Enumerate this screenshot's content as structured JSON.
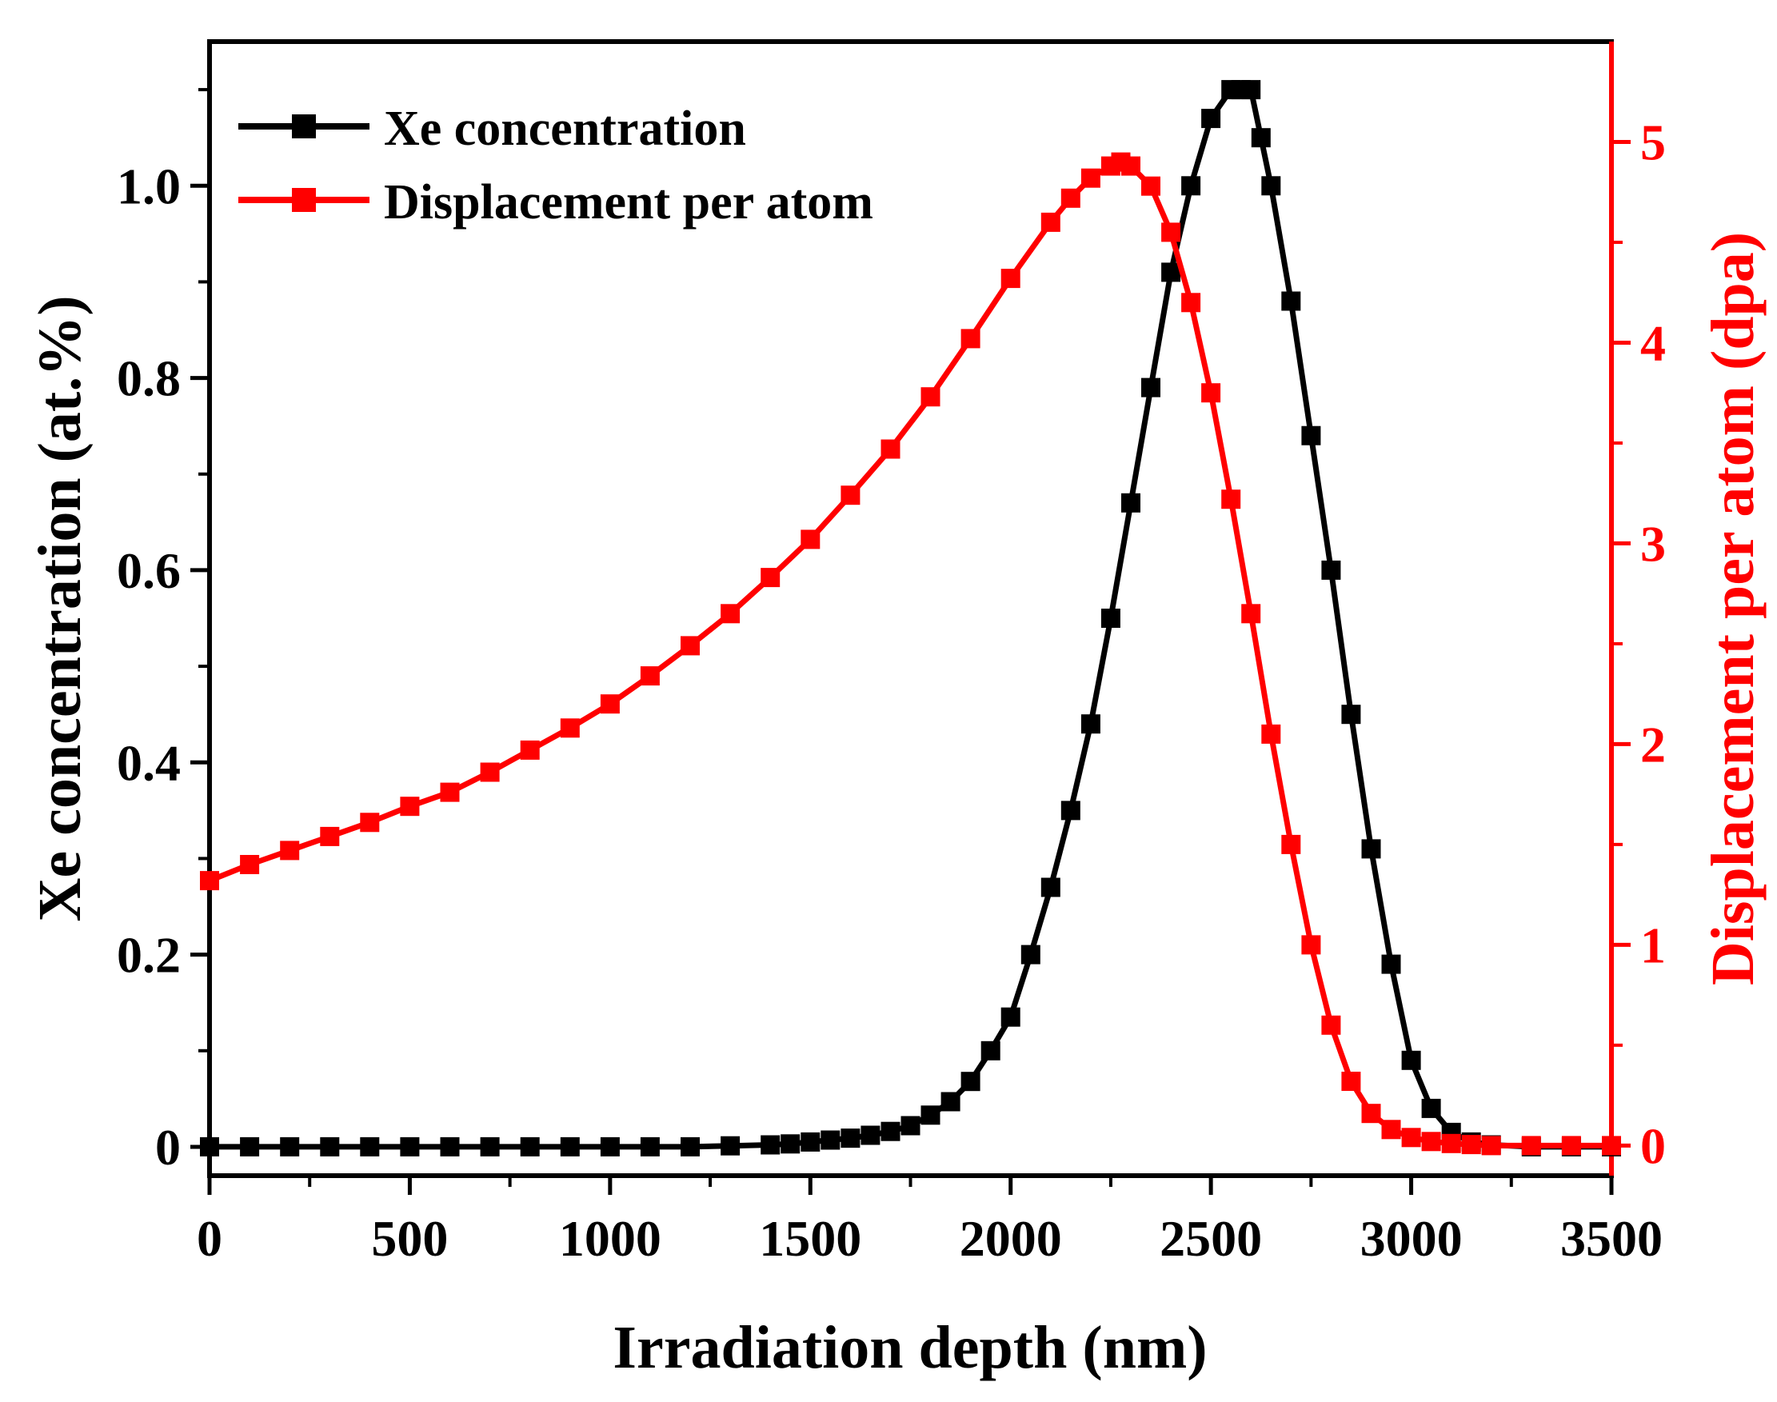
{
  "chart_data": {
    "type": "line",
    "title": "",
    "xlabel": "Irradiation depth (nm)",
    "ylabel_left": "Xe concentration (at.%)",
    "ylabel_right": "Displacement per atom (dpa)",
    "xlim": [
      0,
      3500
    ],
    "ylim_left": [
      -0.03,
      1.15
    ],
    "ylim_right": [
      -0.15,
      5.5
    ],
    "x_ticks": [
      0,
      500,
      1000,
      1500,
      2000,
      2500,
      3000,
      3500
    ],
    "y_ticks_left": [
      0,
      0.2,
      0.4,
      0.6,
      0.8,
      1.0
    ],
    "y_tick_labels_left": [
      "0",
      "0.2",
      "0.4",
      "0.6",
      "0.8",
      "1.0"
    ],
    "y_ticks_right": [
      0,
      1,
      2,
      3,
      4,
      5
    ],
    "grid": false,
    "legend_position": "top-left",
    "colors": {
      "xe": "#000000",
      "dpa": "#ff0000"
    },
    "series": [
      {
        "name": "Xe concentration",
        "axis": "left",
        "marker": "square",
        "x": [
          0,
          100,
          200,
          300,
          400,
          500,
          600,
          700,
          800,
          900,
          1000,
          1100,
          1200,
          1300,
          1400,
          1450,
          1500,
          1550,
          1600,
          1650,
          1700,
          1750,
          1800,
          1850,
          1900,
          1950,
          2000,
          2050,
          2100,
          2150,
          2200,
          2250,
          2300,
          2350,
          2400,
          2450,
          2500,
          2550,
          2575,
          2600,
          2625,
          2650,
          2700,
          2750,
          2800,
          2850,
          2900,
          2950,
          3000,
          3050,
          3100,
          3150,
          3200,
          3300,
          3400,
          3500
        ],
        "y": [
          0,
          0,
          0,
          0,
          0,
          0,
          0,
          0,
          0,
          0,
          0,
          0,
          0,
          0.001,
          0.002,
          0.003,
          0.005,
          0.007,
          0.009,
          0.012,
          0.016,
          0.022,
          0.033,
          0.047,
          0.068,
          0.1,
          0.135,
          0.2,
          0.27,
          0.35,
          0.44,
          0.55,
          0.67,
          0.79,
          0.91,
          1.0,
          1.07,
          1.1,
          1.1,
          1.1,
          1.05,
          1.0,
          0.88,
          0.74,
          0.6,
          0.45,
          0.31,
          0.19,
          0.09,
          0.04,
          0.015,
          0.005,
          0.002,
          0,
          0,
          0
        ]
      },
      {
        "name": "Displacement per atom",
        "axis": "right",
        "marker": "square",
        "x": [
          0,
          100,
          200,
          300,
          400,
          500,
          600,
          700,
          800,
          900,
          1000,
          1100,
          1200,
          1300,
          1400,
          1500,
          1600,
          1700,
          1800,
          1900,
          2000,
          2100,
          2150,
          2200,
          2250,
          2275,
          2300,
          2350,
          2400,
          2450,
          2500,
          2550,
          2600,
          2650,
          2700,
          2750,
          2800,
          2850,
          2900,
          2950,
          3000,
          3050,
          3100,
          3150,
          3200,
          3300,
          3400,
          3500
        ],
        "y": [
          1.32,
          1.4,
          1.47,
          1.54,
          1.61,
          1.69,
          1.76,
          1.86,
          1.97,
          2.08,
          2.2,
          2.34,
          2.49,
          2.65,
          2.83,
          3.02,
          3.24,
          3.47,
          3.73,
          4.02,
          4.32,
          4.6,
          4.72,
          4.82,
          4.88,
          4.9,
          4.88,
          4.78,
          4.55,
          4.2,
          3.75,
          3.22,
          2.65,
          2.05,
          1.5,
          1.0,
          0.6,
          0.32,
          0.16,
          0.08,
          0.04,
          0.02,
          0.01,
          0.005,
          0,
          0,
          0,
          0
        ]
      }
    ]
  }
}
